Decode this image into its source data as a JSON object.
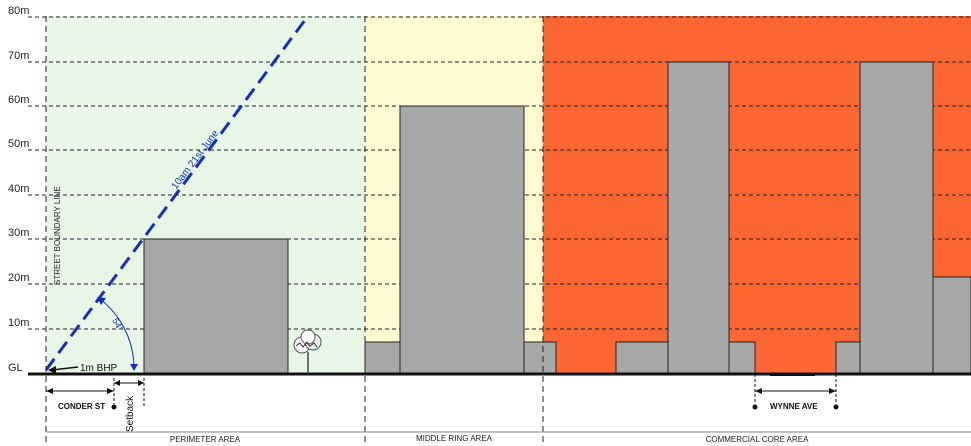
{
  "height_levels": [
    {
      "label": "80m",
      "value": 80
    },
    {
      "label": "70m",
      "value": 70
    },
    {
      "label": "60m",
      "value": 60
    },
    {
      "label": "50m",
      "value": 50
    },
    {
      "label": "40m",
      "value": 40
    },
    {
      "label": "30m",
      "value": 30
    },
    {
      "label": "20m",
      "value": 20
    },
    {
      "label": "10m",
      "value": 10
    }
  ],
  "ground_label": "GL",
  "street_boundary_label": "STREET BOUNDARY LINE",
  "sun_angle_label": "10am 21st June",
  "angle_label": "54°",
  "bhp_label": "1m BHP",
  "setback_label": "Setback",
  "street_labels": {
    "conder": "CONDER ST",
    "wynne": "WYNNE AVE"
  },
  "zones": [
    {
      "label": "PERIMETER AREA",
      "color": "#e6f7e6"
    },
    {
      "label": "MIDDLE RING AREA",
      "color": "#fdfbd0"
    },
    {
      "label": "COMMERCIAL CORE AREA",
      "color": "#fb6632"
    }
  ],
  "colors": {
    "building": "#a8a8a8",
    "sun_line": "#1a2fb8",
    "grid": "#222222"
  }
}
